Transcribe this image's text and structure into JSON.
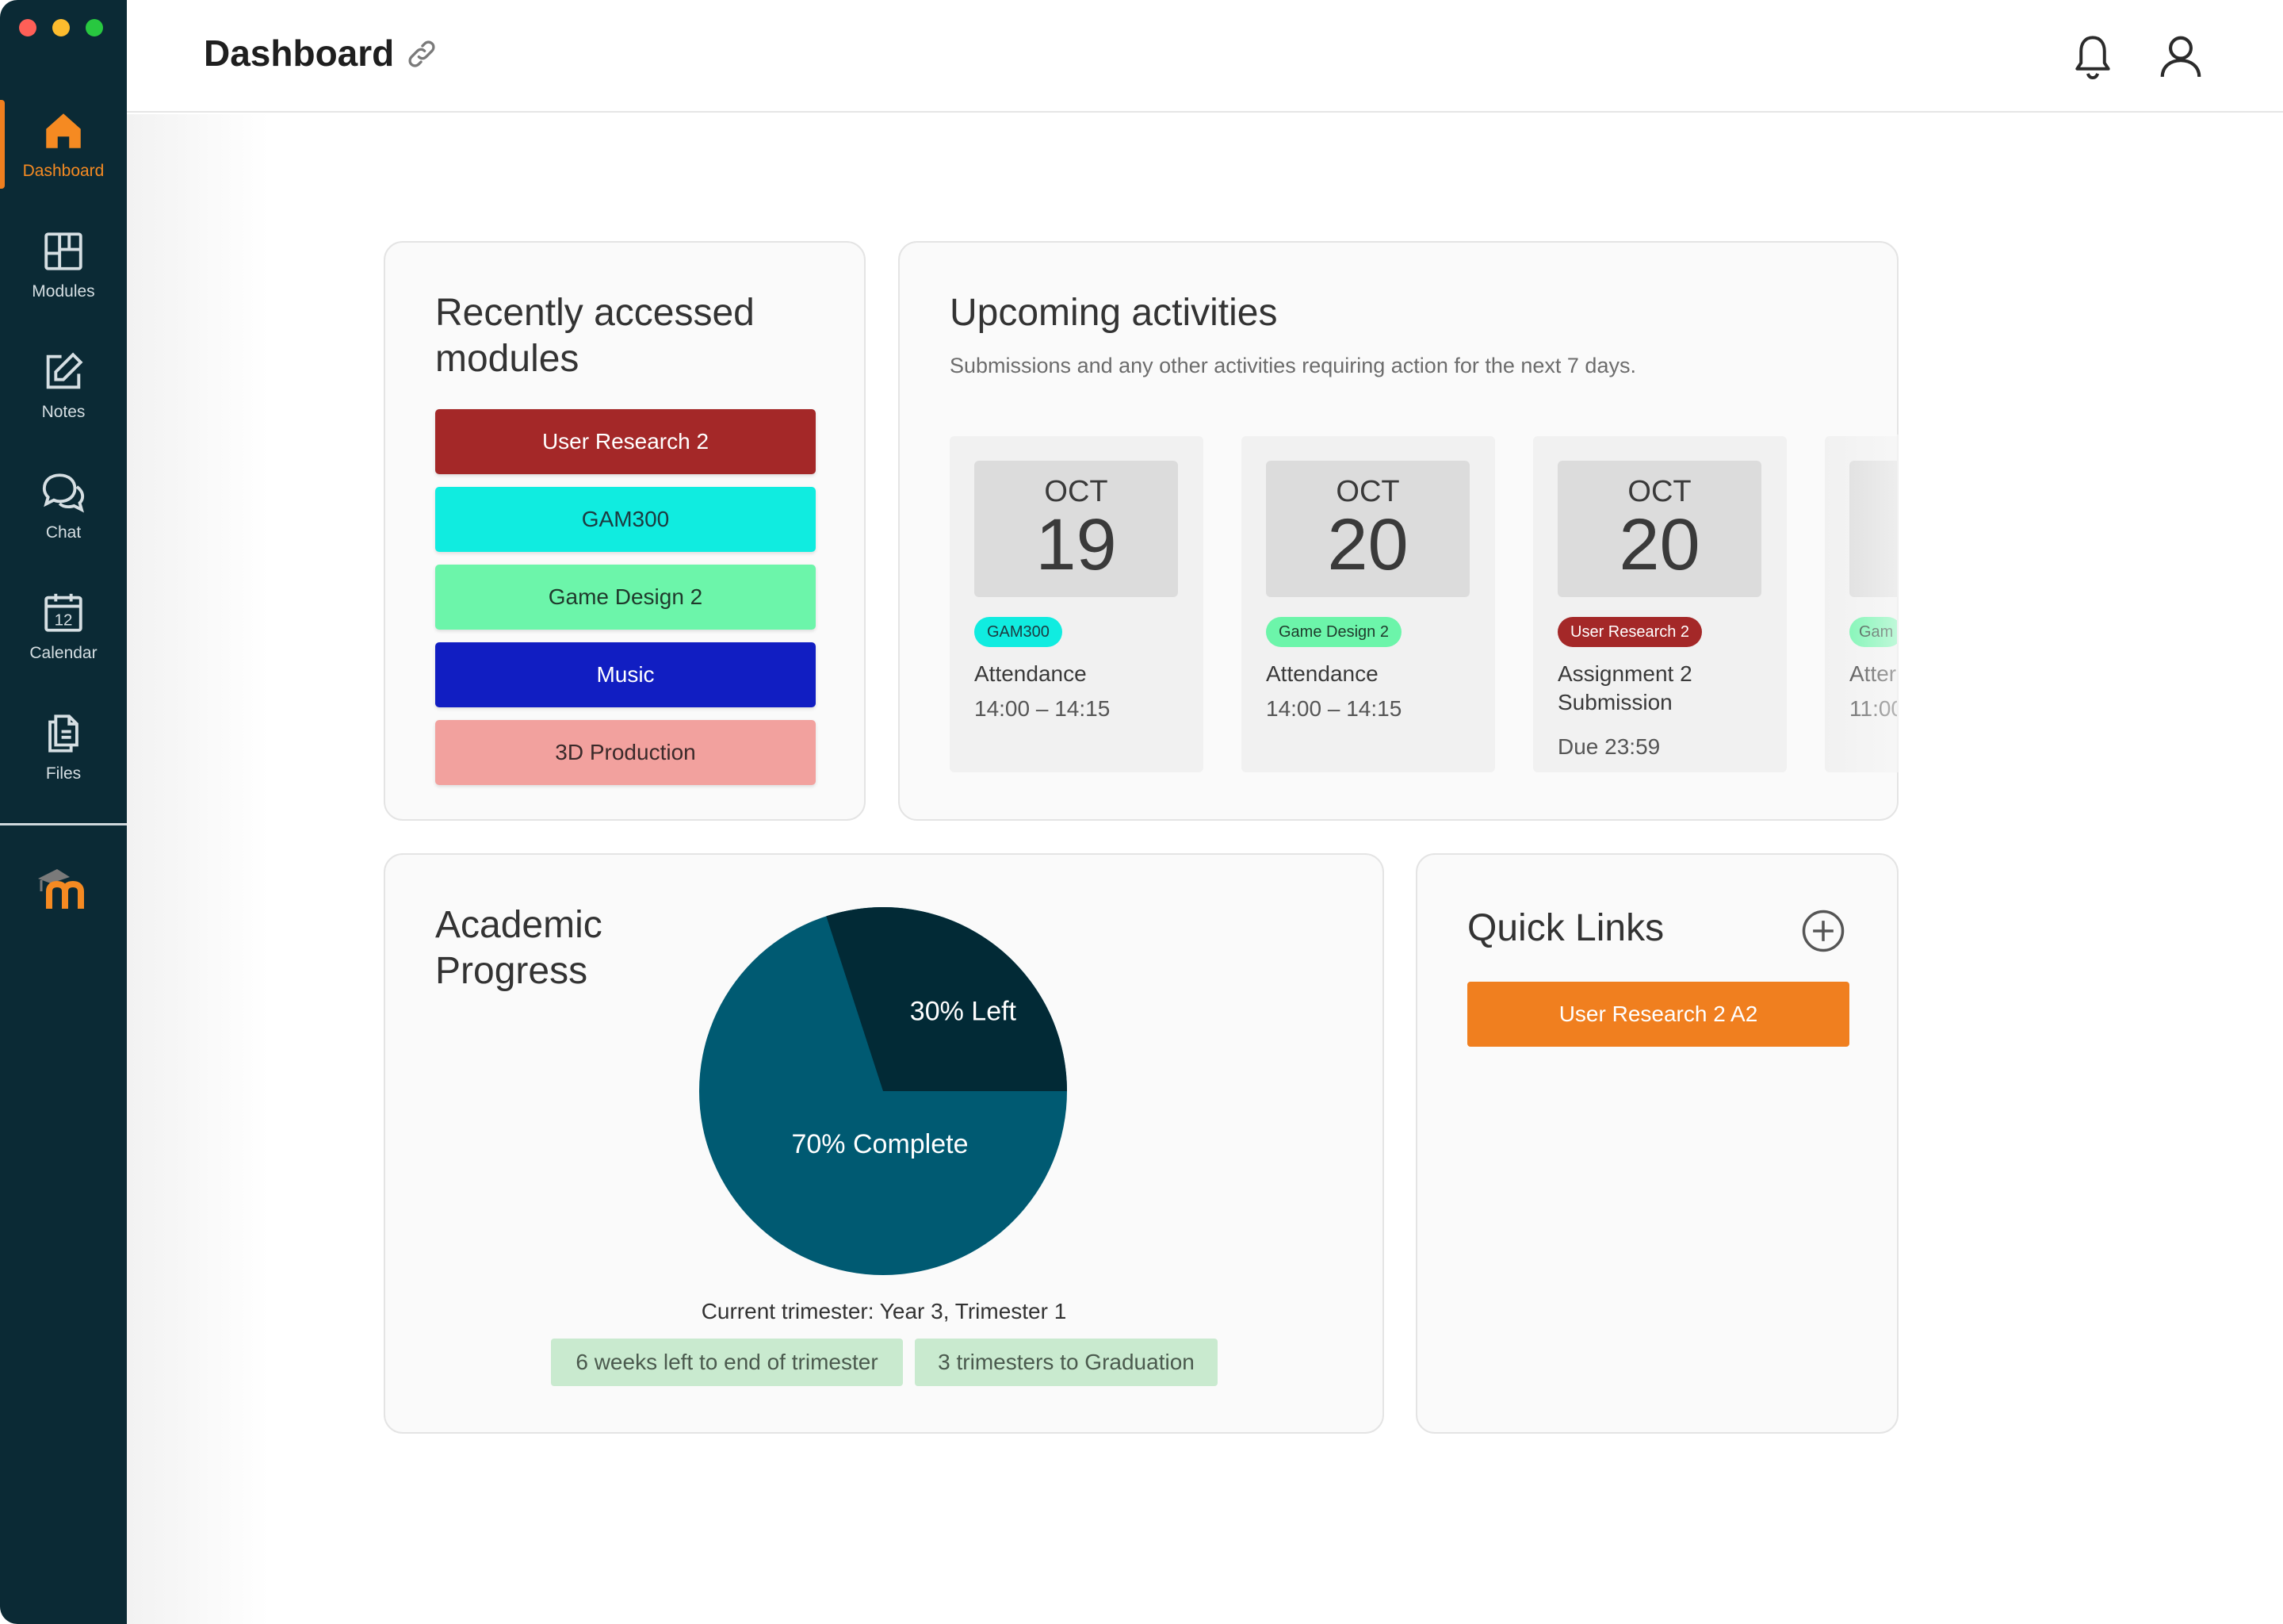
{
  "window": {
    "traffic_lights": [
      "close",
      "minimize",
      "zoom"
    ]
  },
  "sidebar": {
    "items": [
      {
        "label": "Dashboard",
        "icon": "home-icon",
        "active": true
      },
      {
        "label": "Modules",
        "icon": "modules-icon"
      },
      {
        "label": "Notes",
        "icon": "notes-icon"
      },
      {
        "label": "Chat",
        "icon": "chat-icon"
      },
      {
        "label": "Calendar",
        "icon": "calendar-icon",
        "icon_text": "12"
      },
      {
        "label": "Files",
        "icon": "files-icon"
      }
    ],
    "logo_icon": "moodle-logo-icon",
    "accent_color": "#f58a22",
    "background_color": "#0b2a35"
  },
  "header": {
    "title": "Dashboard",
    "link_icon": "link-icon",
    "notifications_icon": "bell-icon",
    "profile_icon": "user-icon"
  },
  "recent_modules": {
    "title": "Recently accessed modules",
    "modules": [
      {
        "label": "User Research 2",
        "color": "#a42828",
        "text_color": "#ffffff"
      },
      {
        "label": "GAM300",
        "color": "#10ece0",
        "text_color": "#1c3a40"
      },
      {
        "label": "Game Design 2",
        "color": "#6cf5aa",
        "text_color": "#1f3a2c"
      },
      {
        "label": "Music",
        "color": "#111ec2",
        "text_color": "#ffffff"
      },
      {
        "label": "3D Production",
        "color": "#f2a19e",
        "text_color": "#3a2a2a"
      }
    ]
  },
  "upcoming": {
    "title": "Upcoming activities",
    "subtitle": "Submissions and any other activities requiring action for the next 7 days.",
    "activities": [
      {
        "month": "OCT",
        "day": "19",
        "tag": "GAM300",
        "tag_color": "#10ece0",
        "tag_text_color": "#1c3a40",
        "title": "Attendance",
        "time": "14:00 – 14:15"
      },
      {
        "month": "OCT",
        "day": "20",
        "tag": "Game Design 2",
        "tag_color": "#6cf5aa",
        "tag_text_color": "#1f3a2c",
        "title": "Attendance",
        "time": "14:00 – 14:15"
      },
      {
        "month": "OCT",
        "day": "20",
        "tag": "User Research 2",
        "tag_color": "#a42828",
        "tag_text_color": "#ffffff",
        "title": "Assignment 2 Submission",
        "time": "Due 23:59"
      },
      {
        "month": "",
        "day": "",
        "tag": "Gam",
        "tag_color": "#6cf5aa",
        "tag_text_color": "#1f3a2c",
        "title": "Atter",
        "time": "11:00"
      }
    ]
  },
  "academic": {
    "title": "Academic Progress",
    "current_trimester": "Current trimester: Year 3, Trimester 1",
    "pills": [
      "6 weeks left to end of trimester",
      "3 trimesters to Graduation"
    ]
  },
  "chart_data": {
    "type": "pie",
    "slices": [
      {
        "label": "70% Complete",
        "value": 70,
        "color": "#005a72"
      },
      {
        "label": "30% Left",
        "value": 30,
        "color": "#022a36"
      }
    ]
  },
  "quick_links": {
    "title": "Quick Links",
    "add_icon": "plus-circle-icon",
    "links": [
      {
        "label": "User Research 2 A2",
        "color": "#f07f1f"
      }
    ]
  }
}
